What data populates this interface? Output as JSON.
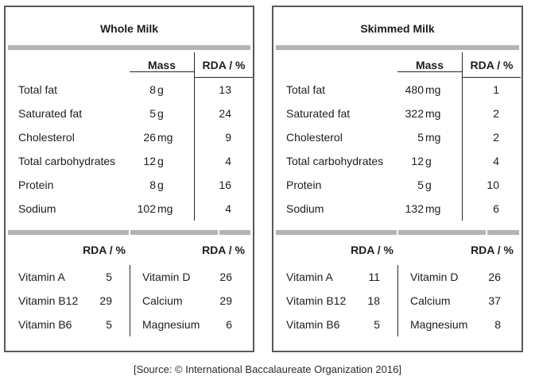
{
  "tables": [
    {
      "title": "Whole Milk",
      "main": {
        "mass_header": "Mass",
        "rda_header": "RDA / %",
        "rows": [
          {
            "label": "Total fat",
            "mass": "8",
            "unit": "g",
            "rda": "13"
          },
          {
            "label": "Saturated fat",
            "mass": "5",
            "unit": "g",
            "rda": "24"
          },
          {
            "label": "Cholesterol",
            "mass": "26",
            "unit": "mg",
            "rda": "9"
          },
          {
            "label": "Total carbohydrates",
            "mass": "12",
            "unit": "g",
            "rda": "4"
          },
          {
            "label": "Protein",
            "mass": "8",
            "unit": "g",
            "rda": "16"
          },
          {
            "label": "Sodium",
            "mass": "102",
            "unit": "mg",
            "rda": "4"
          }
        ]
      },
      "micros": {
        "left_header": "RDA / %",
        "right_header": "RDA / %",
        "left_rows": [
          {
            "label": "Vitamin A",
            "rda": "5"
          },
          {
            "label": "Vitamin B12",
            "rda": "29"
          },
          {
            "label": "Vitamin B6",
            "rda": "5"
          }
        ],
        "right_rows": [
          {
            "label": "Vitamin D",
            "rda": "26"
          },
          {
            "label": "Calcium",
            "rda": "29"
          },
          {
            "label": "Magnesium",
            "rda": "6"
          }
        ]
      }
    },
    {
      "title": "Skimmed Milk",
      "main": {
        "mass_header": "Mass",
        "rda_header": "RDA / %",
        "rows": [
          {
            "label": "Total fat",
            "mass": "480",
            "unit": "mg",
            "rda": "1"
          },
          {
            "label": "Saturated fat",
            "mass": "322",
            "unit": "mg",
            "rda": "2"
          },
          {
            "label": "Cholesterol",
            "mass": "5",
            "unit": "mg",
            "rda": "2"
          },
          {
            "label": "Total carbohydrates",
            "mass": "12",
            "unit": "g",
            "rda": "4"
          },
          {
            "label": "Protein",
            "mass": "5",
            "unit": "g",
            "rda": "10"
          },
          {
            "label": "Sodium",
            "mass": "132",
            "unit": "mg",
            "rda": "6"
          }
        ]
      },
      "micros": {
        "left_header": "RDA / %",
        "right_header": "RDA / %",
        "left_rows": [
          {
            "label": "Vitamin A",
            "rda": "11"
          },
          {
            "label": "Vitamin B12",
            "rda": "18"
          },
          {
            "label": "Vitamin B6",
            "rda": "5"
          }
        ],
        "right_rows": [
          {
            "label": "Vitamin D",
            "rda": "26"
          },
          {
            "label": "Calcium",
            "rda": "37"
          },
          {
            "label": "Magnesium",
            "rda": "8"
          }
        ]
      }
    }
  ],
  "source_line": "[Source: © International Baccalaureate Organization 2016]",
  "colors": {
    "divider_bar": "#b3b3b3",
    "table_border": "#595959",
    "rule_lines": "#262626",
    "text": "#1d1d1d"
  }
}
